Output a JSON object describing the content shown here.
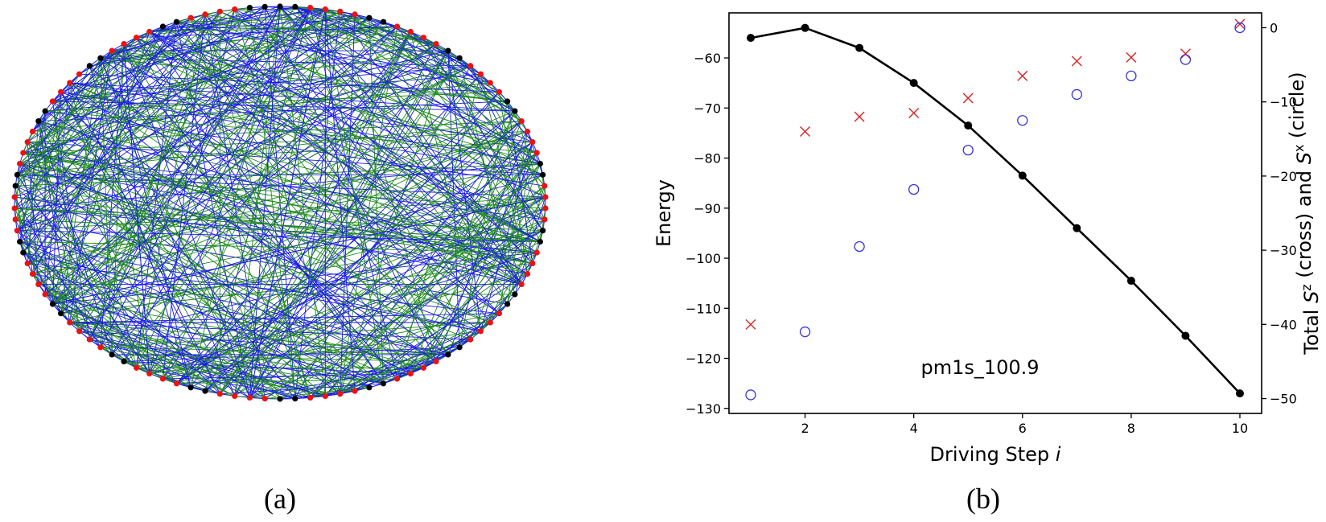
{
  "panel_a": {
    "caption": "(a)",
    "graph": {
      "type": "circular-graph",
      "node_count": 110,
      "node_colors": {
        "dark": "#000000",
        "accent": "#ee1111"
      },
      "edge_colors": {
        "blue": "#1a1aee",
        "green": "#1e8a1e"
      }
    }
  },
  "panel_b": {
    "caption": "(b)"
  },
  "chart_data": {
    "type": "line",
    "x": [
      1,
      2,
      3,
      4,
      5,
      6,
      7,
      8,
      9,
      10
    ],
    "xlabel": "Driving Step i",
    "ylabel": "Energy",
    "y2label": "Total S^z (cross) and S^x (circle)",
    "annotation": "pm1s_100.9",
    "xlim": [
      0.6,
      10.4
    ],
    "ylim": [
      -131,
      -51
    ],
    "y2lim": [
      -52,
      2
    ],
    "xticks": [
      2,
      4,
      6,
      8,
      10
    ],
    "yticks": [
      -60,
      -70,
      -80,
      -90,
      -100,
      -110,
      -120,
      -130
    ],
    "y2ticks": [
      0,
      -10,
      -20,
      -30,
      -40,
      -50
    ],
    "grid": false,
    "series": [
      {
        "axis": "left",
        "style": "line-dot",
        "color": "#000000",
        "values": [
          -56.0,
          -54.0,
          -58.0,
          -65.0,
          -73.5,
          -83.5,
          -94.0,
          -104.5,
          -115.5,
          -127.0
        ]
      },
      {
        "axis": "right",
        "style": "cross",
        "color": "#dd2222",
        "values": [
          -40.0,
          -14.0,
          -12.0,
          -11.5,
          -9.5,
          -6.5,
          -4.5,
          -4.0,
          -3.5,
          0.5
        ]
      },
      {
        "axis": "right",
        "style": "circle",
        "color": "#3333dd",
        "values": [
          -49.5,
          -41.0,
          -29.5,
          -21.8,
          -16.5,
          -12.5,
          -9.0,
          -6.5,
          -4.3,
          0.0
        ]
      }
    ]
  }
}
